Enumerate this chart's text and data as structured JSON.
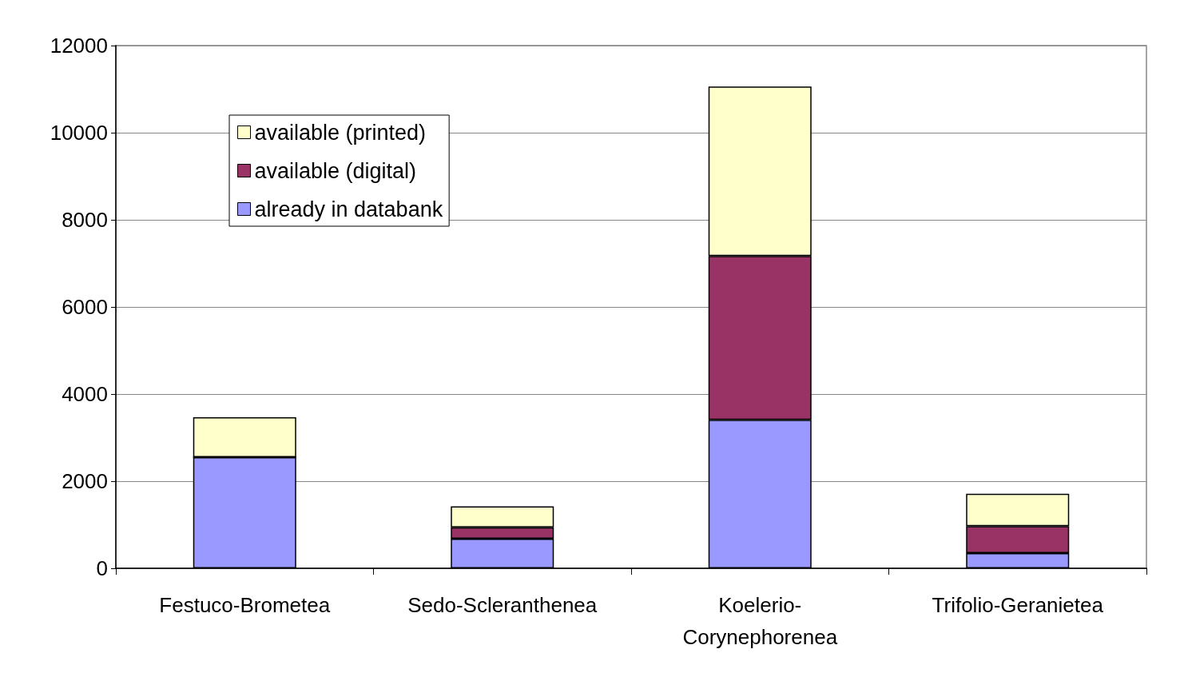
{
  "chart_data": {
    "type": "bar",
    "stacked": true,
    "categories": [
      "Festuco-Brometea",
      "Sedo-Scleranthenea",
      "Koelerio-Corynephorenea",
      "Trifolio-Geranietea"
    ],
    "series": [
      {
        "name": "already in databank",
        "color": "#9999ff",
        "values": [
          2550,
          680,
          3410,
          350
        ]
      },
      {
        "name": "available (digital)",
        "color": "#993366",
        "values": [
          0,
          260,
          3760,
          620
        ]
      },
      {
        "name": "available (printed)",
        "color": "#ffffcc",
        "values": [
          920,
          480,
          3890,
          740
        ]
      }
    ],
    "ylim": [
      0,
      12000
    ],
    "yticks": [
      0,
      2000,
      4000,
      6000,
      8000,
      10000,
      12000
    ],
    "grid": "y",
    "legend": "top left"
  }
}
